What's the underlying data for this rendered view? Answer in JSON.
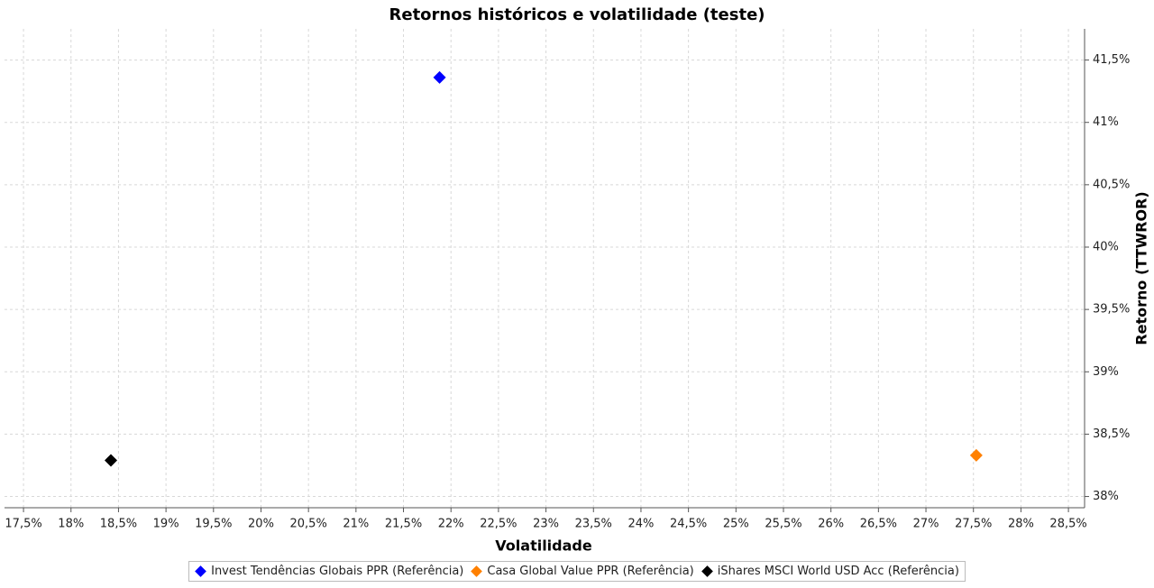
{
  "chart_data": {
    "type": "scatter",
    "title": "Retornos históricos e volatilidade (teste)",
    "x_label": "Volatilidade",
    "y_label": "Retorno (TTWROR)",
    "xlim": [
      17.3,
      28.67
    ],
    "ylim": [
      37.91,
      41.75
    ],
    "xticks": [
      {
        "value": 17.5,
        "label": "17,5%"
      },
      {
        "value": 18,
        "label": "18%"
      },
      {
        "value": 18.5,
        "label": "18,5%"
      },
      {
        "value": 19,
        "label": "19%"
      },
      {
        "value": 19.5,
        "label": "19,5%"
      },
      {
        "value": 20,
        "label": "20%"
      },
      {
        "value": 20.5,
        "label": "20,5%"
      },
      {
        "value": 21,
        "label": "21%"
      },
      {
        "value": 21.5,
        "label": "21,5%"
      },
      {
        "value": 22,
        "label": "22%"
      },
      {
        "value": 22.5,
        "label": "22,5%"
      },
      {
        "value": 23,
        "label": "23%"
      },
      {
        "value": 23.5,
        "label": "23,5%"
      },
      {
        "value": 24,
        "label": "24%"
      },
      {
        "value": 24.5,
        "label": "24,5%"
      },
      {
        "value": 25,
        "label": "25%"
      },
      {
        "value": 25.5,
        "label": "25,5%"
      },
      {
        "value": 26,
        "label": "26%"
      },
      {
        "value": 26.5,
        "label": "26,5%"
      },
      {
        "value": 27,
        "label": "27%"
      },
      {
        "value": 27.5,
        "label": "27,5%"
      },
      {
        "value": 28,
        "label": "28%"
      },
      {
        "value": 28.5,
        "label": "28,5%"
      }
    ],
    "yticks": [
      {
        "value": 38,
        "label": "38%"
      },
      {
        "value": 38.5,
        "label": "38,5%"
      },
      {
        "value": 39,
        "label": "39%"
      },
      {
        "value": 39.5,
        "label": "39,5%"
      },
      {
        "value": 40,
        "label": "40%"
      },
      {
        "value": 40.5,
        "label": "40,5%"
      },
      {
        "value": 41,
        "label": "41%"
      },
      {
        "value": 41.5,
        "label": "41,5%"
      }
    ],
    "grid": true,
    "y_axis_side": "right",
    "legend_position": "bottom",
    "series": [
      {
        "name": "Invest Tendências Globais PPR (Referência)",
        "color": "#0000ff",
        "x": [
          21.88
        ],
        "values": [
          41.36
        ]
      },
      {
        "name": "Casa Global Value PPR (Referência)",
        "color": "#ff8000",
        "x": [
          27.53
        ],
        "values": [
          38.33
        ]
      },
      {
        "name": "iShares MSCI World USD Acc (Referência)",
        "color": "#000000",
        "x": [
          18.42
        ],
        "values": [
          38.29
        ]
      }
    ]
  }
}
